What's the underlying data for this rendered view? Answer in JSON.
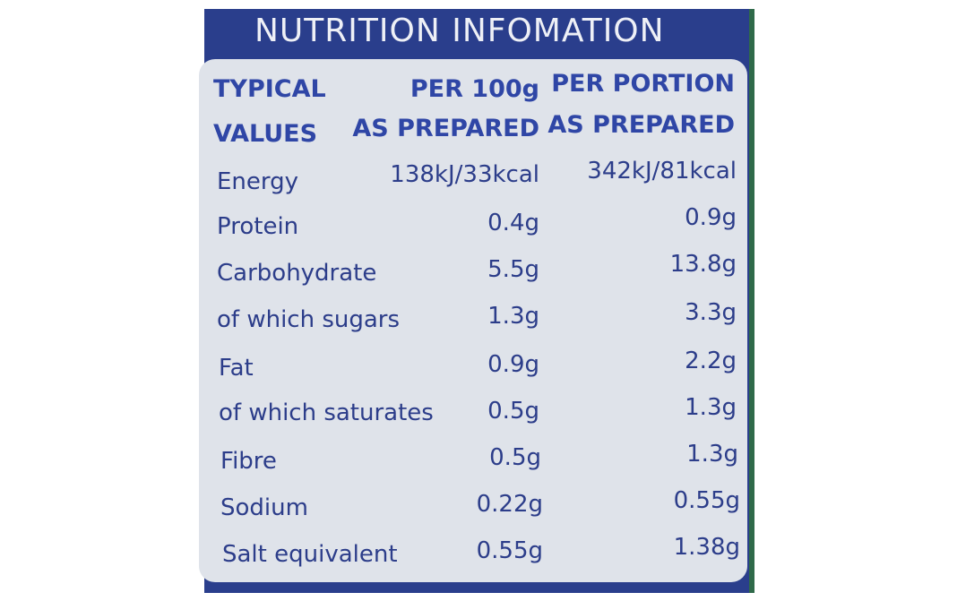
{
  "title": "NUTRITION INFOMATION",
  "headers": {
    "col1_line1": "TYPICAL",
    "col1_line2": "VALUES",
    "col2_line1": "PER 100g",
    "col2_line2": "AS PREPARED",
    "col3_line1": "PER PORTION",
    "col3_line2": "AS PREPARED"
  },
  "rows": [
    {
      "label": "Energy",
      "per100g": "138kJ/33kcal",
      "perPortion": "342kJ/81kcal"
    },
    {
      "label": "Protein",
      "per100g": "0.4g",
      "perPortion": "0.9g"
    },
    {
      "label": "Carbohydrate",
      "per100g": "5.5g",
      "perPortion": "13.8g"
    },
    {
      "label": "of which sugars",
      "per100g": "1.3g",
      "perPortion": "3.3g"
    },
    {
      "label": "Fat",
      "per100g": "0.9g",
      "perPortion": "2.2g"
    },
    {
      "label": "of which saturates",
      "per100g": "0.5g",
      "perPortion": "1.3g"
    },
    {
      "label": "Fibre",
      "per100g": "0.5g",
      "perPortion": "1.3g"
    },
    {
      "label": "Sodium",
      "per100g": "0.22g",
      "perPortion": "0.55g"
    },
    {
      "label": "Salt equivalent",
      "per100g": "0.55g",
      "perPortion": "1.38g"
    }
  ],
  "colors": {
    "panel": "#2a3e8c",
    "card": "#dfe3ea",
    "header_text": "#2f46a6",
    "body_text": "#2c3d8a"
  }
}
